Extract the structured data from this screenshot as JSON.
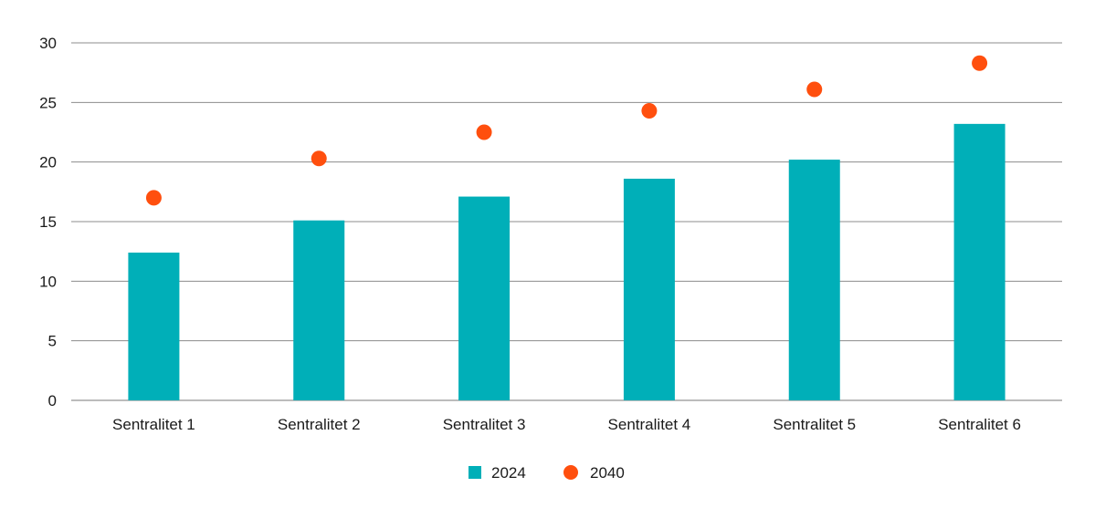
{
  "chart_data": {
    "type": "bar",
    "title": "",
    "xlabel": "",
    "ylabel": "",
    "categories": [
      "Sentralitet 1",
      "Sentralitet 2",
      "Sentralitet 3",
      "Sentralitet 4",
      "Sentralitet 5",
      "Sentralitet 6"
    ],
    "series": [
      {
        "name": "2024",
        "kind": "bar",
        "color": "#00AFB8",
        "values": [
          12.4,
          15.1,
          17.1,
          18.6,
          20.2,
          23.2
        ]
      },
      {
        "name": "2040",
        "kind": "scatter",
        "color": "#FF4F0E",
        "values": [
          17.0,
          20.3,
          22.5,
          24.3,
          26.1,
          28.3
        ]
      }
    ],
    "ylim": [
      0,
      30
    ],
    "yticks": [
      0,
      5,
      10,
      15,
      20,
      25,
      30
    ],
    "grid": true,
    "legend_position": "bottom-center"
  }
}
